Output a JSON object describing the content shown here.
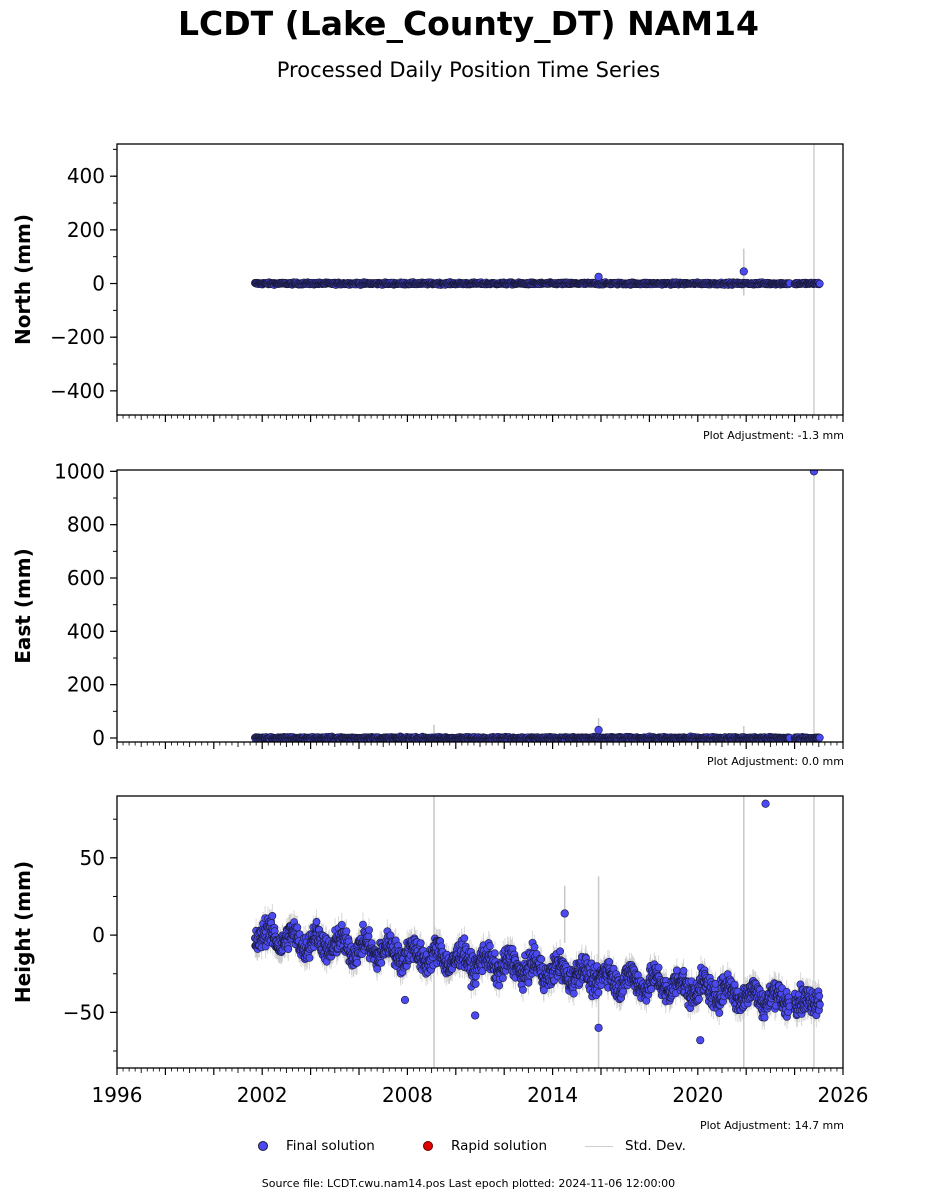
{
  "title": "LCDT (Lake_County_DT) NAM14",
  "subtitle": "Processed Daily Position Time Series",
  "legend": {
    "final_label": "Final solution",
    "rapid_label": "Rapid solution",
    "std_label": "Std. Dev."
  },
  "footer": {
    "source": "Source file: LCDT.cwu.nam14.pos  Last epoch plotted: 2024-11-06 12:00:00"
  },
  "colors": {
    "final": "#4a4af0",
    "rapid": "#e00000",
    "std": "#c8c8c8",
    "marker_edge": "#1a1a3a"
  },
  "chart_data": [
    {
      "type": "scatter",
      "ylabel": "North (mm)",
      "adjustment": "Plot Adjustment: -1.3 mm",
      "xlim": [
        1996,
        2026
      ],
      "ylim": [
        -490,
        520
      ],
      "yticks": [
        -400,
        -200,
        0,
        200,
        400
      ],
      "ytick_labels": [
        "−400",
        "−200",
        "0",
        "200",
        "400"
      ],
      "data_range": [
        2001.7,
        2023.8
      ],
      "noise": 3,
      "trend": 0,
      "seasonal": 0,
      "second_segment": [
        2024.0,
        2025.05
      ],
      "series": [
        {
          "name": "Final solution",
          "x": [
            2015.9,
            2021.9
          ],
          "y": [
            25,
            45
          ]
        }
      ],
      "error_bars": [
        [
          2021.9,
          -45,
          130
        ]
      ],
      "vlines": [
        2024.8
      ]
    },
    {
      "type": "scatter",
      "ylabel": "East (mm)",
      "adjustment": "Plot Adjustment: 0.0 mm",
      "xlim": [
        1996,
        2026
      ],
      "ylim": [
        -15,
        1005
      ],
      "yticks": [
        0,
        200,
        400,
        600,
        800,
        1000
      ],
      "ytick_labels": [
        "0",
        "200",
        "400",
        "600",
        "800",
        "1000"
      ],
      "data_range": [
        2001.7,
        2023.8
      ],
      "noise": 3,
      "trend": 0,
      "seasonal": 0,
      "second_segment": [
        2024.0,
        2025.05
      ],
      "series": [
        {
          "name": "Final solution",
          "x": [
            2015.9,
            2024.8
          ],
          "y": [
            30,
            1000
          ]
        }
      ],
      "error_bars": [
        [
          2009.1,
          0,
          50
        ],
        [
          2015.9,
          0,
          75
        ],
        [
          2021.9,
          0,
          45
        ]
      ],
      "vlines": [
        2024.8
      ]
    },
    {
      "type": "scatter",
      "ylabel": "Height (mm)",
      "adjustment": "Plot Adjustment: 14.7 mm",
      "xlim": [
        1996,
        2026
      ],
      "ylim": [
        -86,
        90
      ],
      "yticks": [
        -50,
        0,
        50
      ],
      "ytick_labels": [
        "−50",
        "0",
        "50"
      ],
      "xticks": [
        1996,
        2002,
        2008,
        2014,
        2020,
        2026
      ],
      "data_range": [
        2001.7,
        2023.8
      ],
      "noise": 6,
      "trend": -1.9,
      "seasonal": 5,
      "second_segment": [
        2024.0,
        2025.05
      ],
      "series": [
        {
          "name": "Final solution",
          "x": [
            2014.5,
            2015.9,
            2022.8,
            2020.1,
            2010.8,
            2007.9
          ],
          "y": [
            14,
            -60,
            85,
            -68,
            -52,
            -42
          ]
        }
      ],
      "error_bars": [
        [
          2009.1,
          -86,
          90
        ],
        [
          2015.9,
          -86,
          38
        ],
        [
          2021.9,
          -86,
          90
        ],
        [
          2014.5,
          -5,
          32
        ]
      ],
      "vlines": [
        2024.8
      ]
    }
  ]
}
